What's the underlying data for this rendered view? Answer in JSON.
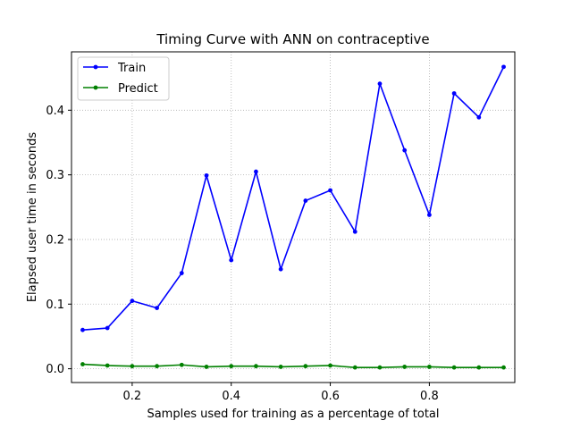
{
  "chart_data": {
    "type": "line",
    "title": "Timing Curve with ANN on contraceptive",
    "xlabel": "Samples used for training as a percentage of total",
    "ylabel": "Elapsed user time in seconds",
    "x": [
      0.1,
      0.15,
      0.2,
      0.25,
      0.3,
      0.35,
      0.4,
      0.45,
      0.5,
      0.55,
      0.6,
      0.65,
      0.7,
      0.75,
      0.8,
      0.85,
      0.9,
      0.95
    ],
    "series": [
      {
        "name": "Train",
        "color": "#0000ff",
        "values": [
          0.06,
          0.063,
          0.105,
          0.094,
          0.148,
          0.299,
          0.168,
          0.305,
          0.154,
          0.26,
          0.276,
          0.212,
          0.441,
          0.338,
          0.238,
          0.426,
          0.389,
          0.467
        ]
      },
      {
        "name": "Predict",
        "color": "#008000",
        "values": [
          0.007,
          0.005,
          0.004,
          0.004,
          0.006,
          0.003,
          0.004,
          0.004,
          0.003,
          0.004,
          0.005,
          0.002,
          0.002,
          0.003,
          0.003,
          0.002,
          0.002,
          0.002
        ]
      }
    ],
    "xlim": [
      0.0775,
      0.9725
    ],
    "ylim": [
      -0.0213,
      0.4903
    ],
    "xticks": [
      {
        "value": 0.2,
        "label": "0.2"
      },
      {
        "value": 0.4,
        "label": "0.4"
      },
      {
        "value": 0.6,
        "label": "0.6"
      },
      {
        "value": 0.8,
        "label": "0.8"
      }
    ],
    "yticks": [
      {
        "value": 0.0,
        "label": "0.0"
      },
      {
        "value": 0.1,
        "label": "0.1"
      },
      {
        "value": 0.2,
        "label": "0.2"
      },
      {
        "value": 0.3,
        "label": "0.3"
      },
      {
        "value": 0.4,
        "label": "0.4"
      }
    ],
    "grid": true,
    "legend_position": "upper-left"
  }
}
